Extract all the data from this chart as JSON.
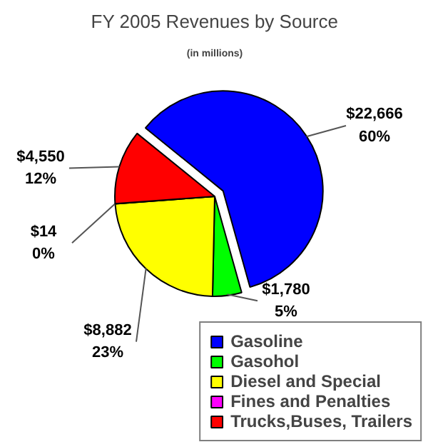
{
  "chart_data": {
    "type": "pie",
    "title": "FY 2005 Revenues by Source",
    "subtitle": "(in millions)",
    "categories": [
      "Gasoline",
      "Gasohol",
      "Diesel and Special",
      "Fines and Penalties",
      "Trucks,Buses, Trailers"
    ],
    "values": [
      22666,
      1780,
      8882,
      14,
      4550
    ],
    "colors": [
      "#0000ff",
      "#00ff00",
      "#ffff00",
      "#ff00ff",
      "#ff0000"
    ],
    "value_labels": [
      "$22,666\n60%",
      "$1,780\n5%",
      "$8,882\n23%",
      "$14\n0%",
      "$4,550\n12%"
    ],
    "legend": "bottom right"
  }
}
